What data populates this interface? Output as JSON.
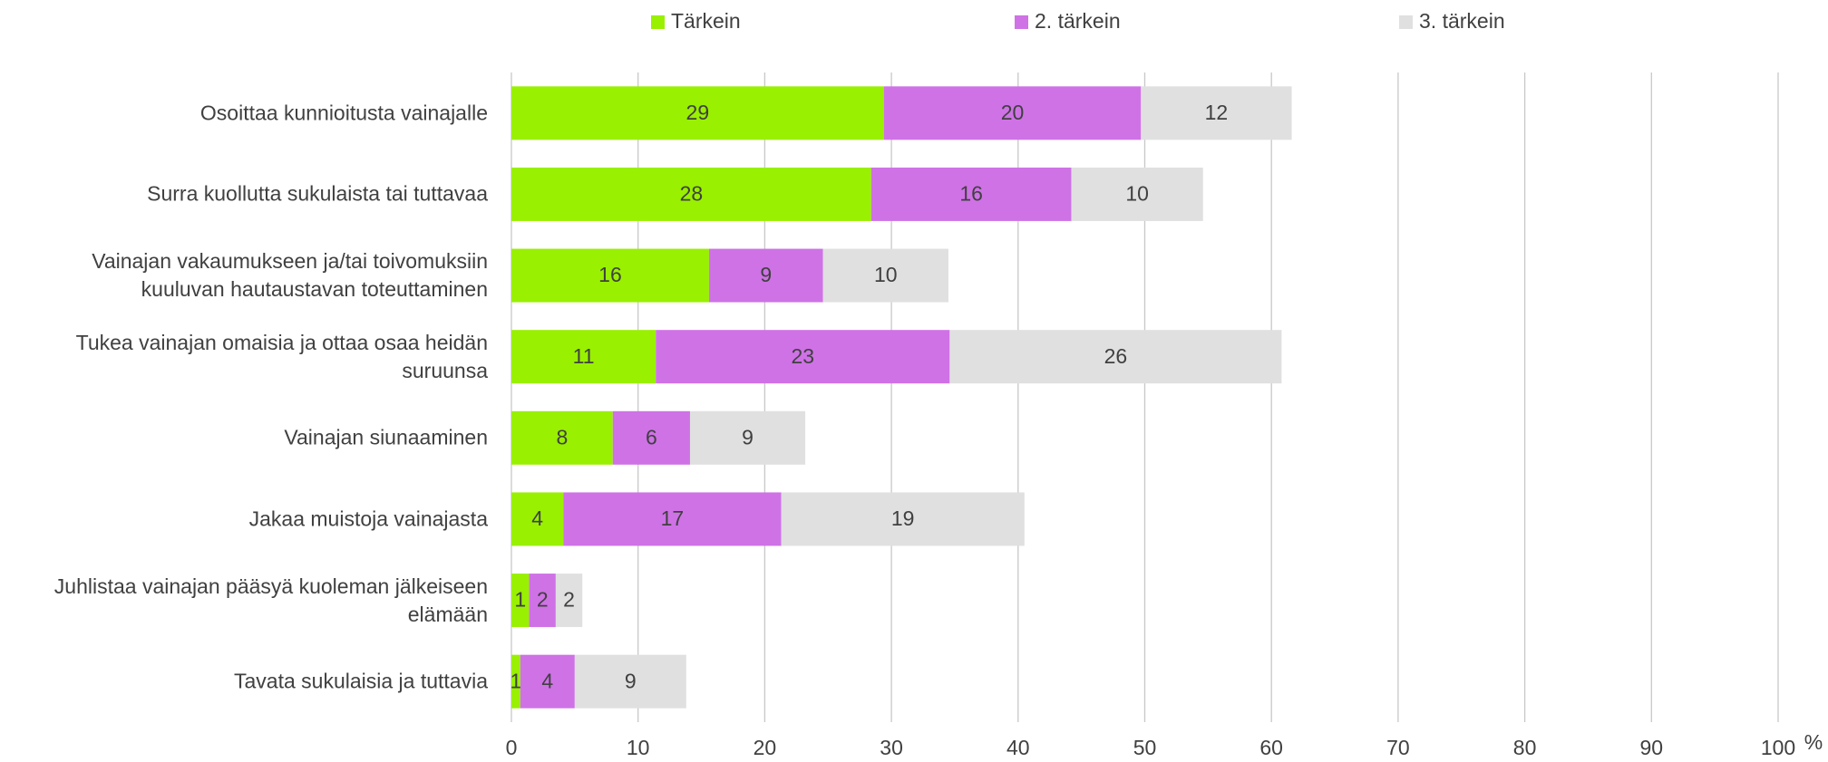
{
  "chart_data": {
    "type": "stacked_bar_horizontal",
    "categories": [
      "Osoittaa kunnioitusta vainajalle",
      "Surra kuollutta sukulaista tai tuttavaa",
      "Vainajan vakaumukseen ja/tai toivomuksiin kuuluvan hautaustavan toteuttaminen",
      "Tukea vainajan omaisia ja ottaa osaa heidän suruunsa",
      "Vainajan siunaaminen",
      "Jakaa muistoja vainajasta",
      "Juhlistaa vainajan pääsyä kuoleman jälkeiseen elämään",
      "Tavata sukulaisia ja tuttavia"
    ],
    "series": [
      {
        "name": "Tärkein",
        "color": "#99f000",
        "values": [
          29.4,
          28.4,
          15.6,
          11.4,
          8.0,
          4.1,
          1.4,
          0.7
        ],
        "value_labels": [
          "29",
          "28",
          "16",
          "11",
          "8",
          "4",
          "1",
          "1"
        ]
      },
      {
        "name": "2. tärkein",
        "color": "#cf72e6",
        "values": [
          20.3,
          15.8,
          9.0,
          23.2,
          6.1,
          17.2,
          2.1,
          4.3
        ],
        "value_labels": [
          "20",
          "16",
          "9",
          "23",
          "6",
          "17",
          "2",
          "4"
        ]
      },
      {
        "name": "3. tärkein",
        "color": "#e0e0e0",
        "values": [
          11.9,
          10.4,
          9.9,
          26.2,
          9.1,
          19.2,
          2.1,
          8.8
        ],
        "value_labels": [
          "12",
          "10",
          "10",
          "26",
          "9",
          "19",
          "2",
          "9"
        ]
      }
    ],
    "xlabel": "%",
    "xlim": [
      0,
      100
    ],
    "xticks": [
      0,
      10,
      20,
      30,
      40,
      50,
      60,
      70,
      80,
      90,
      100
    ],
    "grid": true,
    "legend": "top"
  }
}
